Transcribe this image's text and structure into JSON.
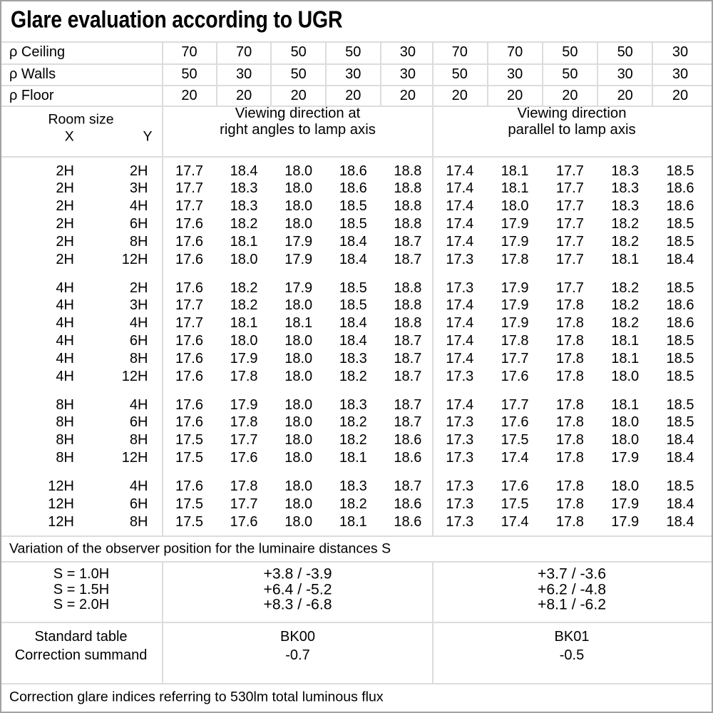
{
  "title": "Glare evaluation according to UGR",
  "reflectance_table": {
    "rows": [
      {
        "label": "ρ Ceiling",
        "values": [
          "70",
          "70",
          "50",
          "50",
          "30",
          "70",
          "70",
          "50",
          "50",
          "30"
        ]
      },
      {
        "label": "ρ Walls",
        "values": [
          "50",
          "30",
          "50",
          "30",
          "30",
          "50",
          "30",
          "50",
          "30",
          "30"
        ]
      },
      {
        "label": "ρ Floor",
        "values": [
          "20",
          "20",
          "20",
          "20",
          "20",
          "20",
          "20",
          "20",
          "20",
          "20"
        ]
      }
    ]
  },
  "header": {
    "room_size_label": "Room size",
    "x_label": "X",
    "y_label": "Y",
    "group1_line1": "Viewing direction at",
    "group1_line2": "right angles to lamp axis",
    "group2_line1": "Viewing direction",
    "group2_line2": "parallel to lamp axis"
  },
  "ugr_table": {
    "groups": [
      {
        "rows": [
          {
            "x": "2H",
            "y": "2H",
            "values": [
              "17.7",
              "18.4",
              "18.0",
              "18.6",
              "18.8",
              "17.4",
              "18.1",
              "17.7",
              "18.3",
              "18.5"
            ]
          },
          {
            "x": "2H",
            "y": "3H",
            "values": [
              "17.7",
              "18.3",
              "18.0",
              "18.6",
              "18.8",
              "17.4",
              "18.1",
              "17.7",
              "18.3",
              "18.6"
            ]
          },
          {
            "x": "2H",
            "y": "4H",
            "values": [
              "17.7",
              "18.3",
              "18.0",
              "18.5",
              "18.8",
              "17.4",
              "18.0",
              "17.7",
              "18.3",
              "18.6"
            ]
          },
          {
            "x": "2H",
            "y": "6H",
            "values": [
              "17.6",
              "18.2",
              "18.0",
              "18.5",
              "18.8",
              "17.4",
              "17.9",
              "17.7",
              "18.2",
              "18.5"
            ]
          },
          {
            "x": "2H",
            "y": "8H",
            "values": [
              "17.6",
              "18.1",
              "17.9",
              "18.4",
              "18.7",
              "17.4",
              "17.9",
              "17.7",
              "18.2",
              "18.5"
            ]
          },
          {
            "x": "2H",
            "y": "12H",
            "values": [
              "17.6",
              "18.0",
              "17.9",
              "18.4",
              "18.7",
              "17.3",
              "17.8",
              "17.7",
              "18.1",
              "18.4"
            ]
          }
        ]
      },
      {
        "rows": [
          {
            "x": "4H",
            "y": "2H",
            "values": [
              "17.6",
              "18.2",
              "17.9",
              "18.5",
              "18.8",
              "17.3",
              "17.9",
              "17.7",
              "18.2",
              "18.5"
            ]
          },
          {
            "x": "4H",
            "y": "3H",
            "values": [
              "17.7",
              "18.2",
              "18.0",
              "18.5",
              "18.8",
              "17.4",
              "17.9",
              "17.8",
              "18.2",
              "18.6"
            ]
          },
          {
            "x": "4H",
            "y": "4H",
            "values": [
              "17.7",
              "18.1",
              "18.1",
              "18.4",
              "18.8",
              "17.4",
              "17.9",
              "17.8",
              "18.2",
              "18.6"
            ]
          },
          {
            "x": "4H",
            "y": "6H",
            "values": [
              "17.6",
              "18.0",
              "18.0",
              "18.4",
              "18.7",
              "17.4",
              "17.8",
              "17.8",
              "18.1",
              "18.5"
            ]
          },
          {
            "x": "4H",
            "y": "8H",
            "values": [
              "17.6",
              "17.9",
              "18.0",
              "18.3",
              "18.7",
              "17.4",
              "17.7",
              "17.8",
              "18.1",
              "18.5"
            ]
          },
          {
            "x": "4H",
            "y": "12H",
            "values": [
              "17.6",
              "17.8",
              "18.0",
              "18.2",
              "18.7",
              "17.3",
              "17.6",
              "17.8",
              "18.0",
              "18.5"
            ]
          }
        ]
      },
      {
        "rows": [
          {
            "x": "8H",
            "y": "4H",
            "values": [
              "17.6",
              "17.9",
              "18.0",
              "18.3",
              "18.7",
              "17.4",
              "17.7",
              "17.8",
              "18.1",
              "18.5"
            ]
          },
          {
            "x": "8H",
            "y": "6H",
            "values": [
              "17.6",
              "17.8",
              "18.0",
              "18.2",
              "18.7",
              "17.3",
              "17.6",
              "17.8",
              "18.0",
              "18.5"
            ]
          },
          {
            "x": "8H",
            "y": "8H",
            "values": [
              "17.5",
              "17.7",
              "18.0",
              "18.2",
              "18.6",
              "17.3",
              "17.5",
              "17.8",
              "18.0",
              "18.4"
            ]
          },
          {
            "x": "8H",
            "y": "12H",
            "values": [
              "17.5",
              "17.6",
              "18.0",
              "18.1",
              "18.6",
              "17.3",
              "17.4",
              "17.8",
              "17.9",
              "18.4"
            ]
          }
        ]
      },
      {
        "rows": [
          {
            "x": "12H",
            "y": "4H",
            "values": [
              "17.6",
              "17.8",
              "18.0",
              "18.3",
              "18.7",
              "17.3",
              "17.6",
              "17.8",
              "18.0",
              "18.5"
            ]
          },
          {
            "x": "12H",
            "y": "6H",
            "values": [
              "17.5",
              "17.7",
              "18.0",
              "18.2",
              "18.6",
              "17.3",
              "17.5",
              "17.8",
              "17.9",
              "18.4"
            ]
          },
          {
            "x": "12H",
            "y": "8H",
            "values": [
              "17.5",
              "17.6",
              "18.0",
              "18.1",
              "18.6",
              "17.3",
              "17.4",
              "17.8",
              "17.9",
              "18.4"
            ]
          }
        ]
      }
    ]
  },
  "variation_note": "Variation of the observer position for the luminaire distances S",
  "spacing_table": {
    "rows": [
      {
        "label": "S = 1.0H",
        "right_angles": "+3.8 / -3.9",
        "parallel": "+3.7 / -3.6"
      },
      {
        "label": "S = 1.5H",
        "right_angles": "+6.4 / -5.2",
        "parallel": "+6.2 / -4.8"
      },
      {
        "label": "S = 2.0H",
        "right_angles": "+8.3 / -6.8",
        "parallel": "+8.1 / -6.2"
      }
    ]
  },
  "standard_table_row": {
    "label": "Standard table",
    "right_angles": "BK00",
    "parallel": "BK01"
  },
  "correction_summand_row": {
    "label": "Correction summand",
    "right_angles": "-0.7",
    "parallel": "-0.5"
  },
  "footer_note": "Correction glare indices referring to 530lm total luminous flux",
  "colors": {
    "grid_line": "#dcdcdc",
    "outer_border": "#a2a2a2",
    "text": "#000000",
    "background": "#ffffff"
  }
}
